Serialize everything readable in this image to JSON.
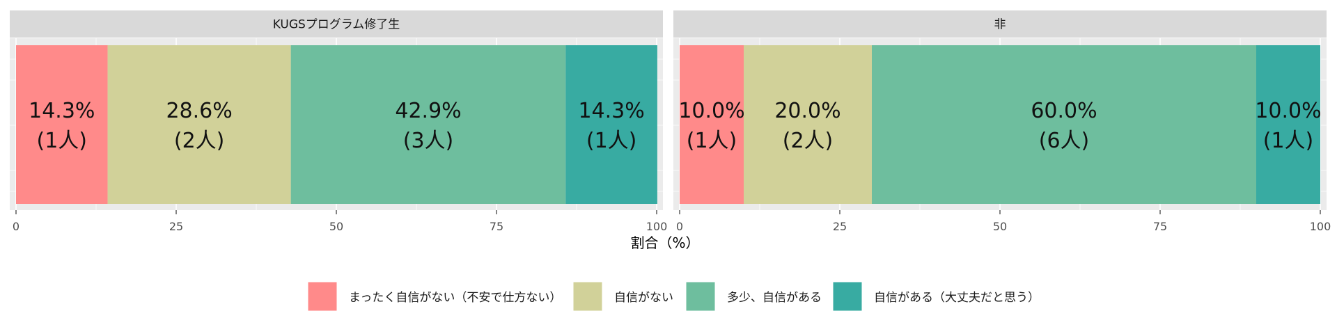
{
  "chart_data": {
    "type": "bar",
    "orientation": "horizontal-stacked",
    "xlabel": "割合（%）",
    "ylabel": "",
    "xlim": [
      0,
      100
    ],
    "x_ticks": [
      "0",
      "25",
      "50",
      "75",
      "100"
    ],
    "grid": true,
    "legend_position": "bottom",
    "facets": [
      {
        "label": "KUGSプログラム修了生",
        "segments": [
          {
            "category": "まったく自信がない（不安で仕方ない）",
            "percent": 14.3,
            "count": 1,
            "label_pct": "14.3%",
            "label_n": "(1人)"
          },
          {
            "category": "自信がない",
            "percent": 28.6,
            "count": 2,
            "label_pct": "28.6%",
            "label_n": "(2人)"
          },
          {
            "category": "多少、自信がある",
            "percent": 42.9,
            "count": 3,
            "label_pct": "42.9%",
            "label_n": "(3人)"
          },
          {
            "category": "自信がある（大丈夫だと思う）",
            "percent": 14.3,
            "count": 1,
            "label_pct": "14.3%",
            "label_n": "(1人)"
          }
        ]
      },
      {
        "label": "非",
        "segments": [
          {
            "category": "まったく自信がない（不安で仕方ない）",
            "percent": 10.0,
            "count": 1,
            "label_pct": "10.0%",
            "label_n": "(1人)"
          },
          {
            "category": "自信がない",
            "percent": 20.0,
            "count": 2,
            "label_pct": "20.0%",
            "label_n": "(2人)"
          },
          {
            "category": "多少、自信がある",
            "percent": 60.0,
            "count": 6,
            "label_pct": "60.0%",
            "label_n": "(6人)"
          },
          {
            "category": "自信がある（大丈夫だと思う）",
            "percent": 10.0,
            "count": 1,
            "label_pct": "10.0%",
            "label_n": "(1人)"
          }
        ]
      }
    ],
    "legend": [
      {
        "label": "まったく自信がない（不安で仕方ない）",
        "color": "#FF8A8A"
      },
      {
        "label": "自信がない",
        "color": "#D1D199"
      },
      {
        "label": "多少、自信がある",
        "color": "#6EBE9E"
      },
      {
        "label": "自信がある（大丈夫だと思う）",
        "color": "#38ABA2"
      }
    ]
  }
}
